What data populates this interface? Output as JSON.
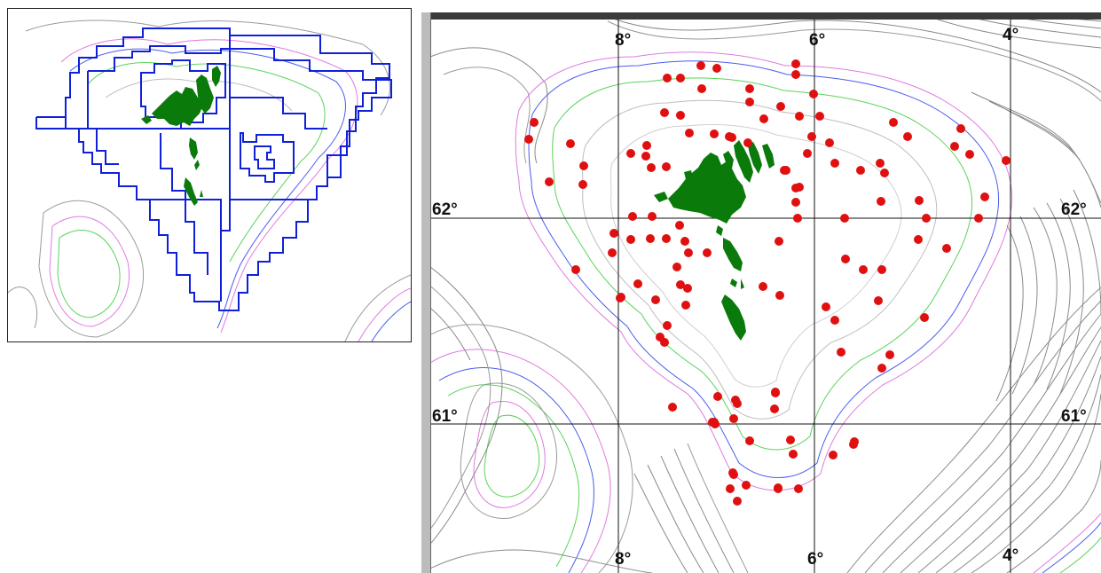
{
  "map": {
    "longitude_labels_top": [
      "8°",
      "6°",
      "4°"
    ],
    "longitude_labels_bottom": [
      "8°",
      "6°",
      "4°"
    ],
    "latitude_labels_left": [
      "62°",
      "61°"
    ],
    "latitude_labels_right": [
      "62°",
      "61°"
    ]
  },
  "colors": {
    "land": "#0a7a0a",
    "station_dot": "#e01010",
    "grid_box_outline": "#1020d8",
    "contour_gray": "#8a8a8a",
    "contour_green": "#5ad35a",
    "contour_blue": "#4a5cf0",
    "contour_magenta": "#e07ae0"
  },
  "icons": {
    "station_marker": "red-dot",
    "islands": "faroe-islands-shape"
  }
}
